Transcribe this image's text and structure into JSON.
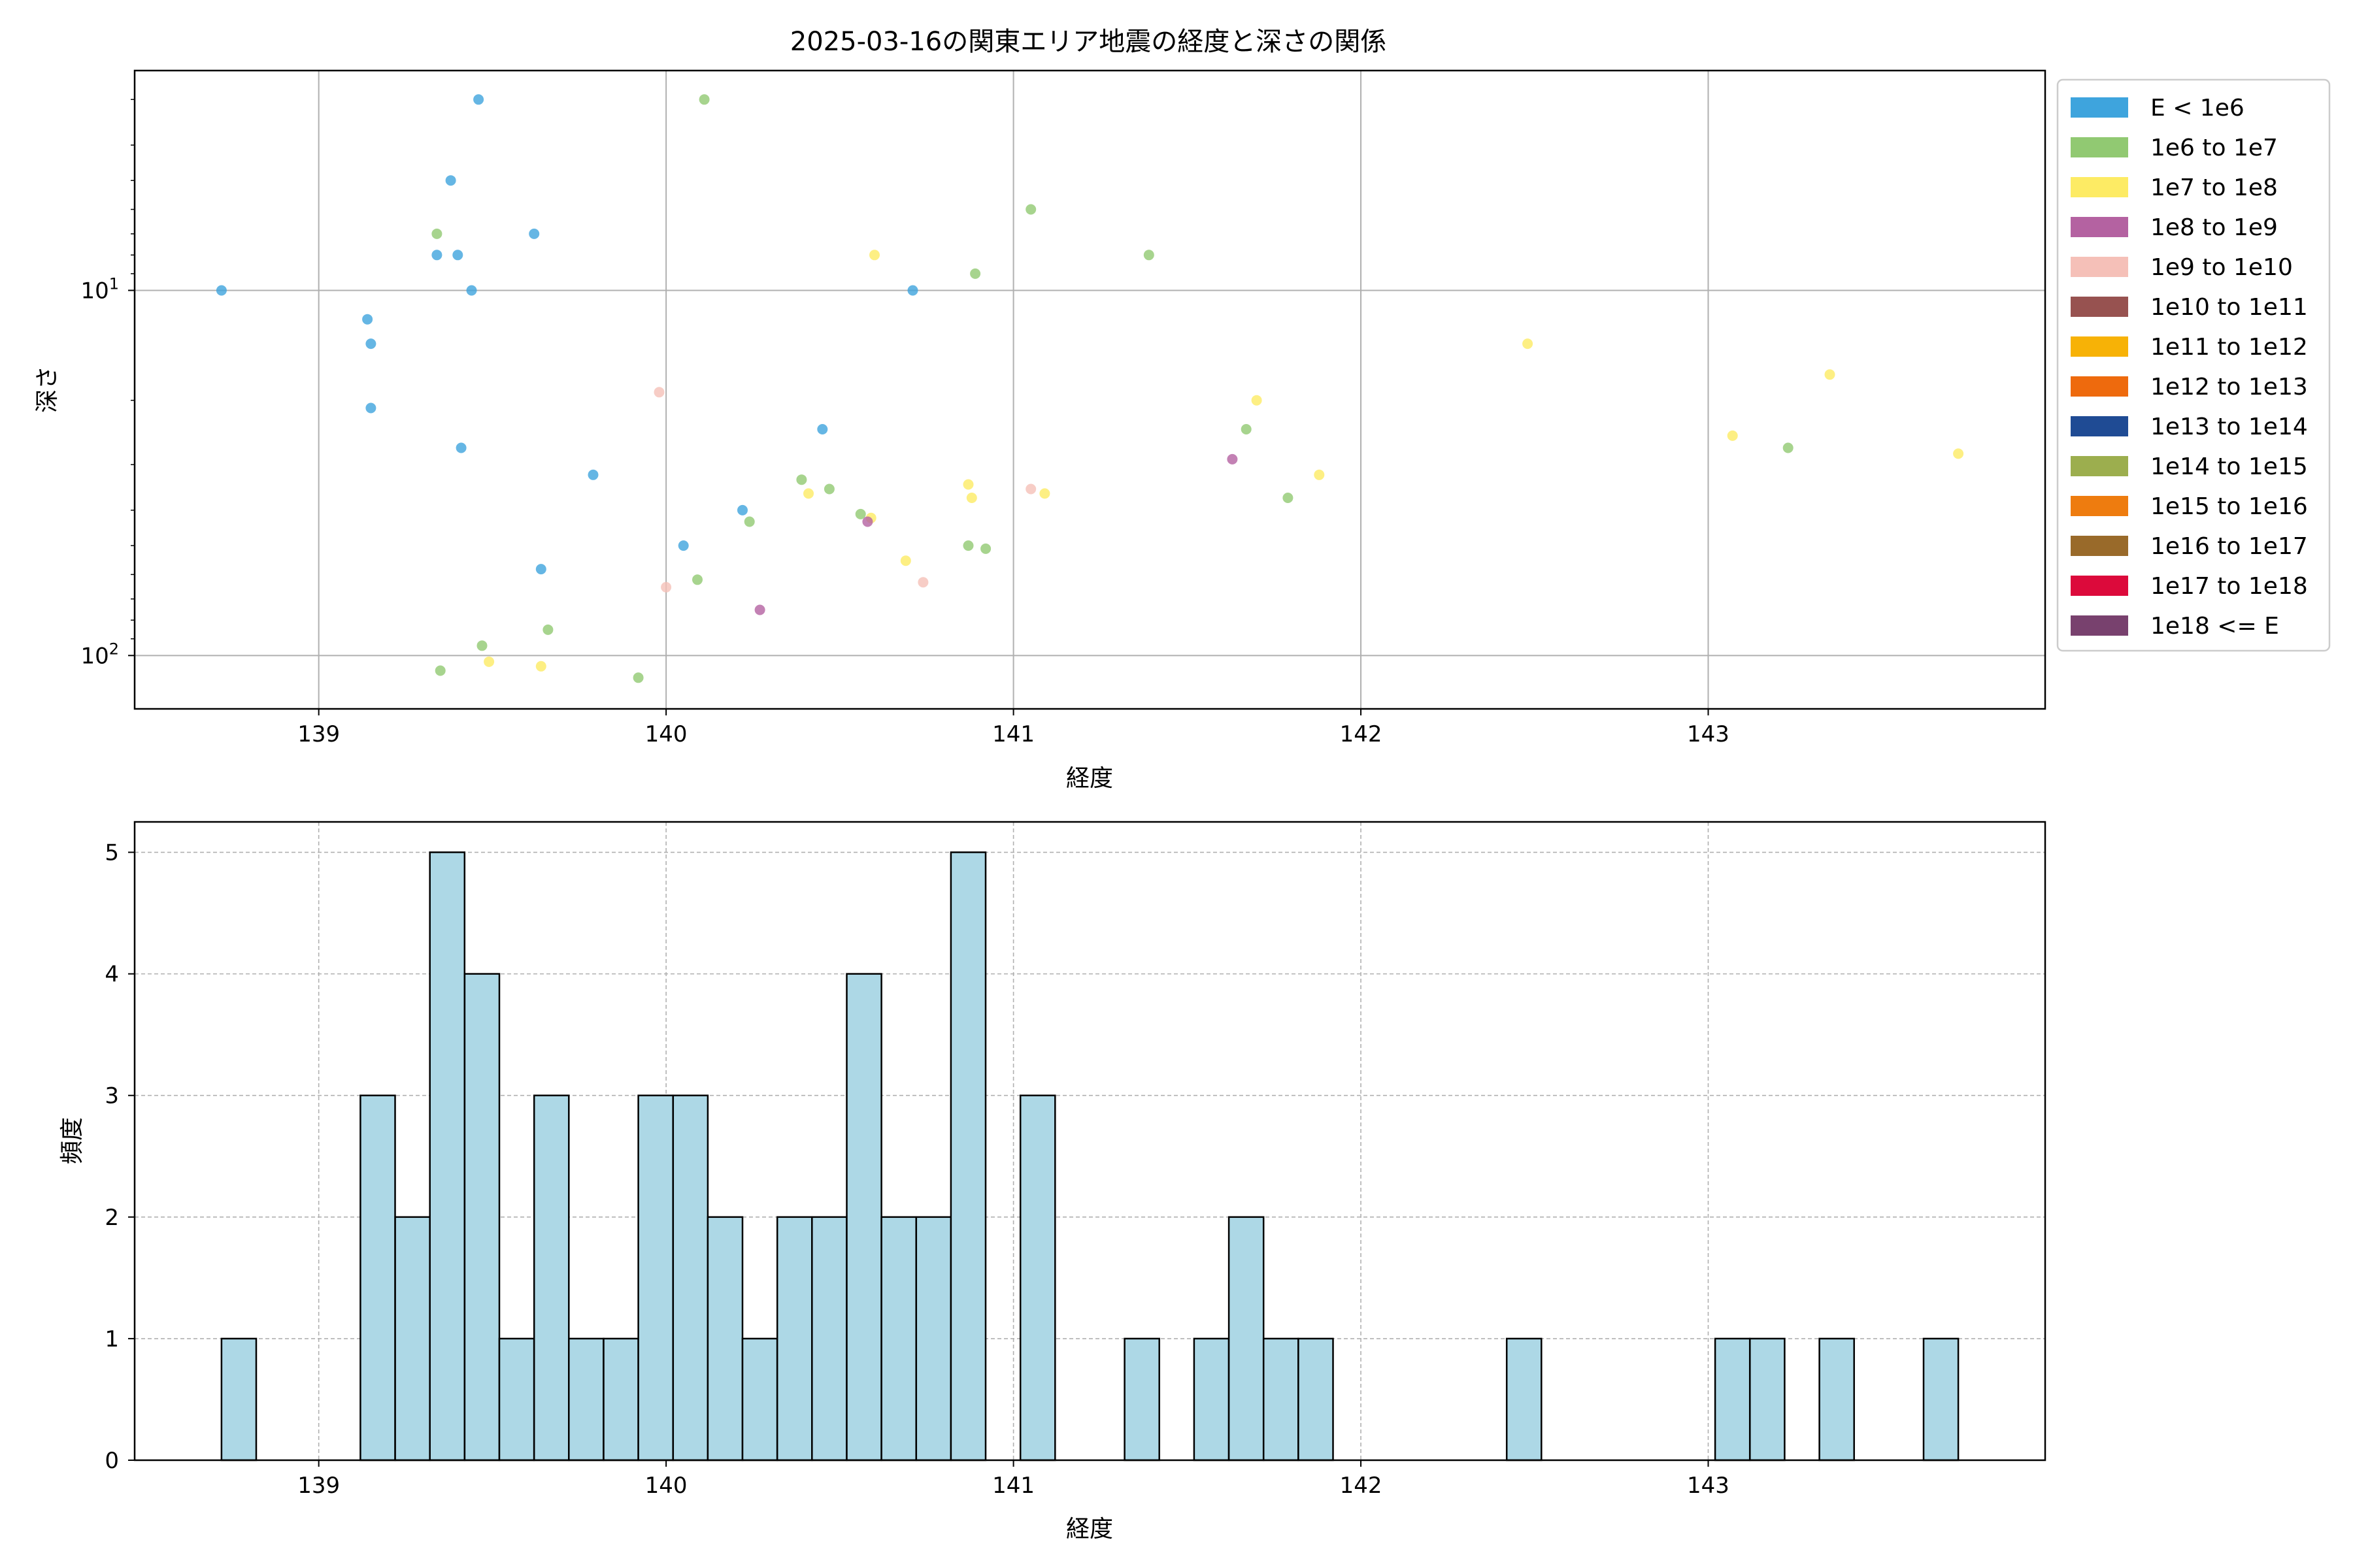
{
  "figure": {
    "title": "2025-03-16の関東エリア地震の経度と深さの関係"
  },
  "chart_data": [
    {
      "type": "scatter",
      "title": "2025-03-16の関東エリア地震の経度と深さの関係",
      "xlabel": "経度",
      "ylabel": "深さ",
      "x_scale": "linear",
      "y_scale": "log",
      "y_inverted": true,
      "xlim": [
        138.47,
        143.97
      ],
      "ylim": [
        140,
        2.5
      ],
      "xticks": [
        139,
        140,
        141,
        142,
        143
      ],
      "yticks": [
        10,
        100
      ],
      "ytick_labels": [
        "10^1",
        "10^2"
      ],
      "grid": true,
      "legend_position": "outside-right",
      "legend": [
        {
          "label": "E < 1e6",
          "color": "#3ea4dd"
        },
        {
          "label": "1e6 to 1e7",
          "color": "#91c972"
        },
        {
          "label": "1e7 to 1e8",
          "color": "#fdeb64"
        },
        {
          "label": "1e8 to 1e9",
          "color": "#b462a1"
        },
        {
          "label": "1e9 to 1e10",
          "color": "#f5c0b8"
        },
        {
          "label": "1e10 to 1e11",
          "color": "#975250"
        },
        {
          "label": "1e11 to 1e12",
          "color": "#f7b206"
        },
        {
          "label": "1e12 to 1e13",
          "color": "#ee6a0d"
        },
        {
          "label": "1e13 to 1e14",
          "color": "#1f4b94"
        },
        {
          "label": "1e14 to 1e15",
          "color": "#9cae4e"
        },
        {
          "label": "1e15 to 1e16",
          "color": "#ee7c0f"
        },
        {
          "label": "1e16 to 1e17",
          "color": "#996a2a"
        },
        {
          "label": "1e17 to 1e18",
          "color": "#dc0a3b"
        },
        {
          "label": "1e18 <= E",
          "color": "#78416e"
        }
      ],
      "series": [
        {
          "category": 0,
          "points": [
            [
              138.72,
              10
            ],
            [
              139.14,
              12
            ],
            [
              139.15,
              14
            ],
            [
              139.15,
              21
            ],
            [
              139.34,
              8
            ],
            [
              139.38,
              5
            ],
            [
              139.4,
              8
            ],
            [
              139.41,
              27
            ],
            [
              139.44,
              10
            ],
            [
              139.46,
              3
            ],
            [
              139.62,
              7
            ],
            [
              139.64,
              58
            ],
            [
              139.79,
              32
            ],
            [
              140.05,
              50
            ],
            [
              140.22,
              40
            ],
            [
              140.45,
              24
            ],
            [
              140.71,
              10
            ]
          ]
        },
        {
          "category": 1,
          "points": [
            [
              139.34,
              7
            ],
            [
              139.35,
              110
            ],
            [
              139.47,
              94
            ],
            [
              139.66,
              85
            ],
            [
              139.92,
              115
            ],
            [
              140.09,
              62
            ],
            [
              140.11,
              3
            ],
            [
              140.24,
              43
            ],
            [
              140.39,
              33
            ],
            [
              140.47,
              35
            ],
            [
              140.56,
              41
            ],
            [
              140.87,
              50
            ],
            [
              140.89,
              9
            ],
            [
              140.92,
              51
            ],
            [
              141.05,
              6
            ],
            [
              141.39,
              8
            ],
            [
              141.67,
              24
            ],
            [
              141.79,
              37
            ],
            [
              143.23,
              27
            ]
          ]
        },
        {
          "category": 2,
          "points": [
            [
              139.49,
              104
            ],
            [
              139.64,
              107
            ],
            [
              140.41,
              36
            ],
            [
              140.59,
              42
            ],
            [
              140.6,
              8
            ],
            [
              140.69,
              55
            ],
            [
              140.87,
              34
            ],
            [
              140.88,
              37
            ],
            [
              141.09,
              36
            ],
            [
              141.7,
              20
            ],
            [
              141.88,
              32
            ],
            [
              142.48,
              14
            ],
            [
              143.07,
              25
            ],
            [
              143.35,
              17
            ],
            [
              143.72,
              28
            ]
          ]
        },
        {
          "category": 3,
          "points": [
            [
              140.27,
              75
            ],
            [
              140.58,
              43
            ],
            [
              141.63,
              29
            ]
          ]
        },
        {
          "category": 4,
          "points": [
            [
              139.98,
              19
            ],
            [
              140.0,
              65
            ],
            [
              140.74,
              63
            ],
            [
              141.05,
              35
            ]
          ]
        }
      ]
    },
    {
      "type": "bar",
      "subtype": "histogram",
      "xlabel": "経度",
      "ylabel": "頻度",
      "xlim": [
        138.47,
        143.97
      ],
      "ylim": [
        0,
        5.25
      ],
      "xticks": [
        139,
        140,
        141,
        142,
        143
      ],
      "yticks": [
        0,
        1,
        2,
        3,
        4,
        5
      ],
      "grid": true,
      "bar_color": "#add8e6",
      "edge_color": "#000000",
      "bin_start": 138.72,
      "bin_width": 0.1,
      "values": [
        1,
        0,
        0,
        0,
        3,
        2,
        5,
        4,
        1,
        3,
        1,
        1,
        3,
        3,
        2,
        1,
        2,
        2,
        4,
        2,
        2,
        5,
        0,
        3,
        0,
        0,
        1,
        0,
        1,
        2,
        1,
        1,
        0,
        0,
        0,
        0,
        0,
        1,
        0,
        0,
        0,
        0,
        0,
        1,
        1,
        0,
        1,
        0,
        0,
        1
      ]
    }
  ]
}
